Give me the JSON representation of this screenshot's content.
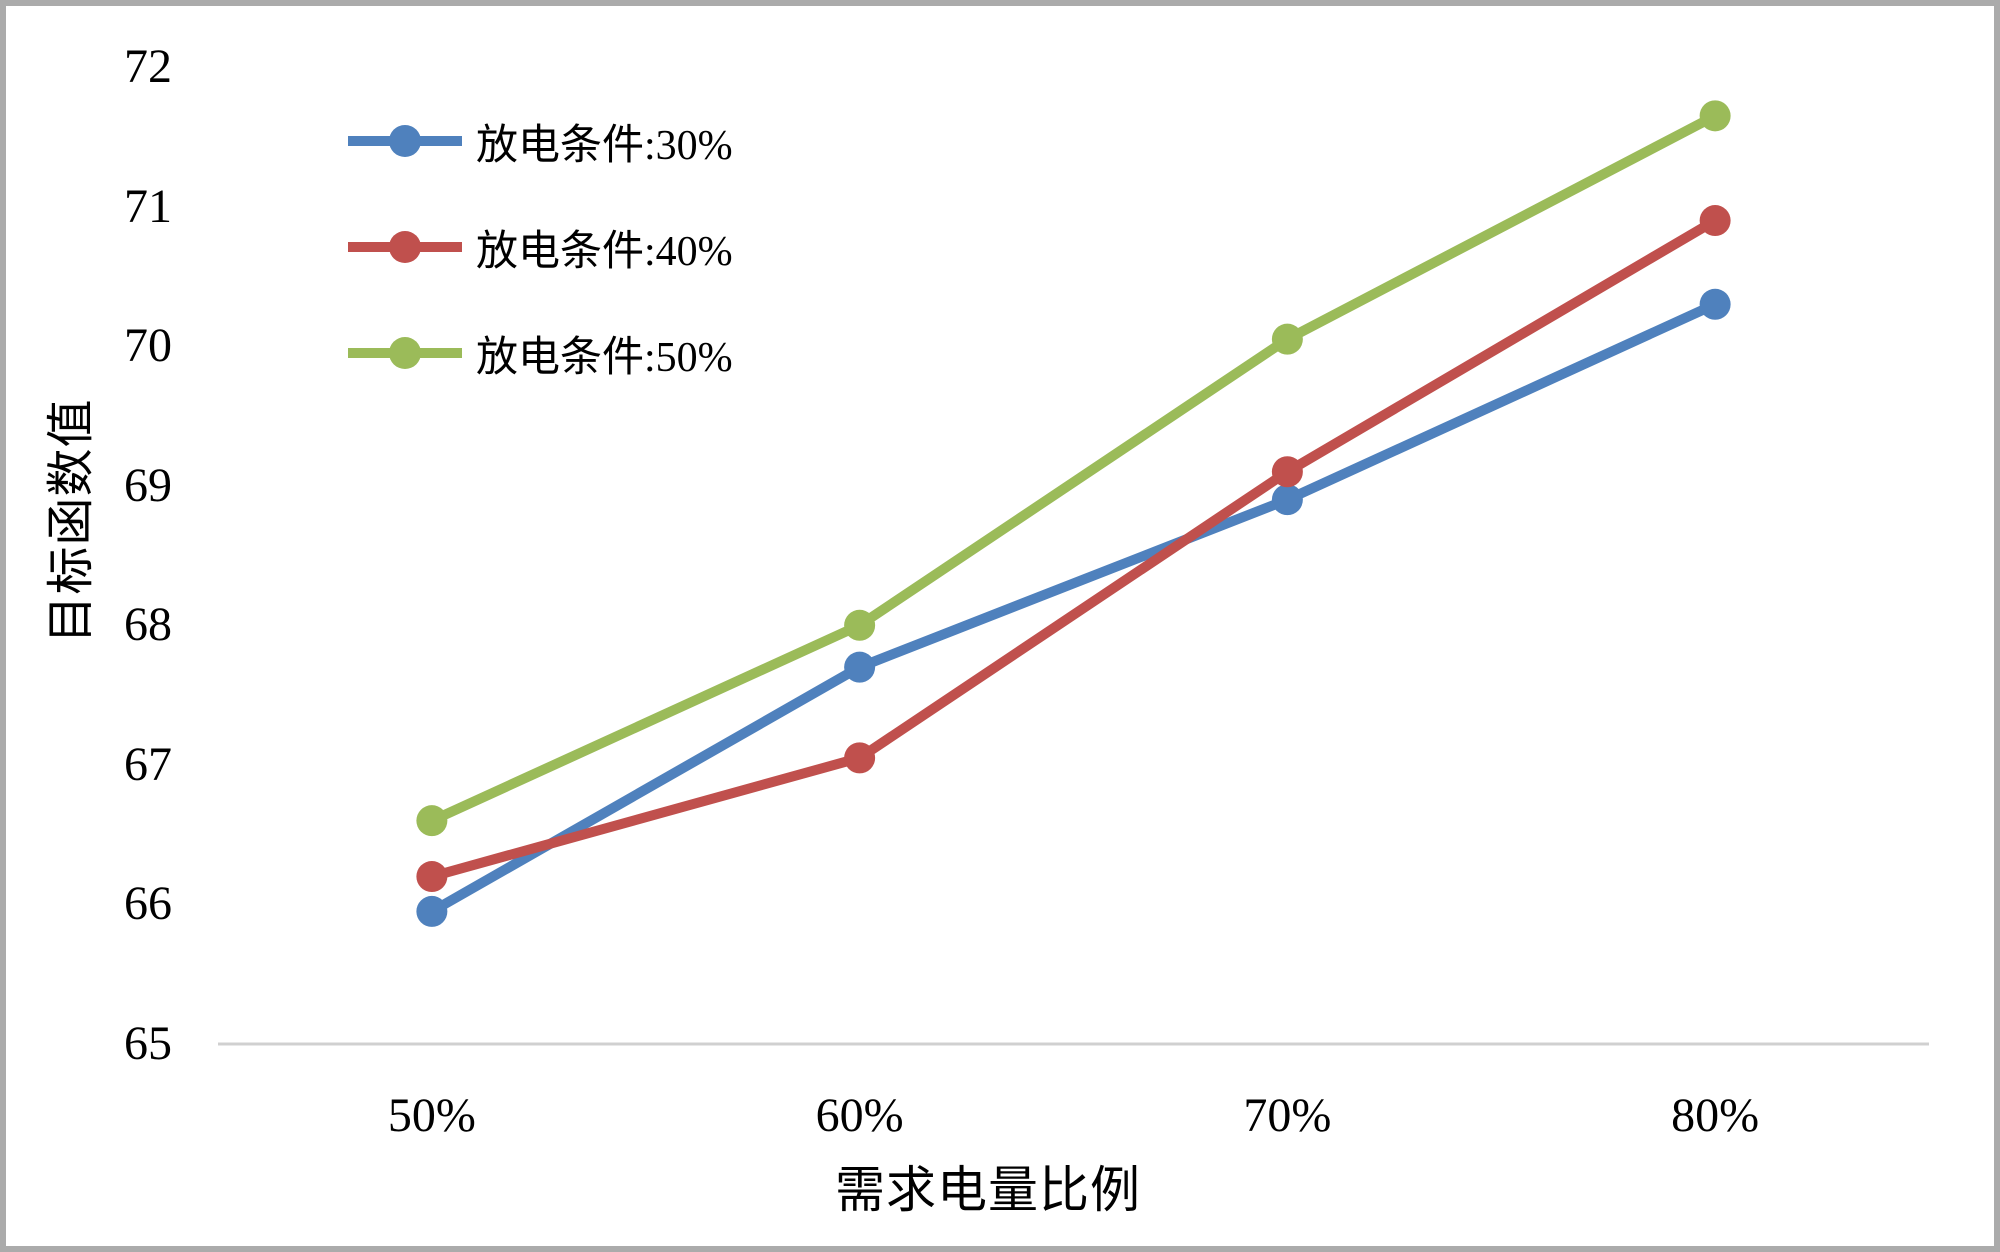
{
  "chart_data": {
    "type": "line",
    "title": "",
    "xlabel": "需求电量比例",
    "ylabel": "目标函数值",
    "categories": [
      "50%",
      "60%",
      "70%",
      "80%"
    ],
    "series": [
      {
        "name": "放电条件:30%",
        "color": "#4F81BD",
        "values": [
          65.95,
          67.7,
          68.9,
          70.3
        ]
      },
      {
        "name": "放电条件:40%",
        "color": "#C0504D",
        "values": [
          66.2,
          67.05,
          69.1,
          70.9
        ]
      },
      {
        "name": "放电条件:50%",
        "color": "#9BBB59",
        "values": [
          66.6,
          68.0,
          70.05,
          71.65
        ]
      }
    ],
    "ylim": [
      65,
      72
    ],
    "y_ticks": [
      65,
      66,
      67,
      68,
      69,
      70,
      71,
      72
    ],
    "grid": "off",
    "legend_position": "inside-top-left",
    "marker": "circle",
    "axis_line_color": "#d0d0d0",
    "frame_border_color": "#ababab",
    "text_color": "#000000",
    "background_color": "#ffffff"
  }
}
